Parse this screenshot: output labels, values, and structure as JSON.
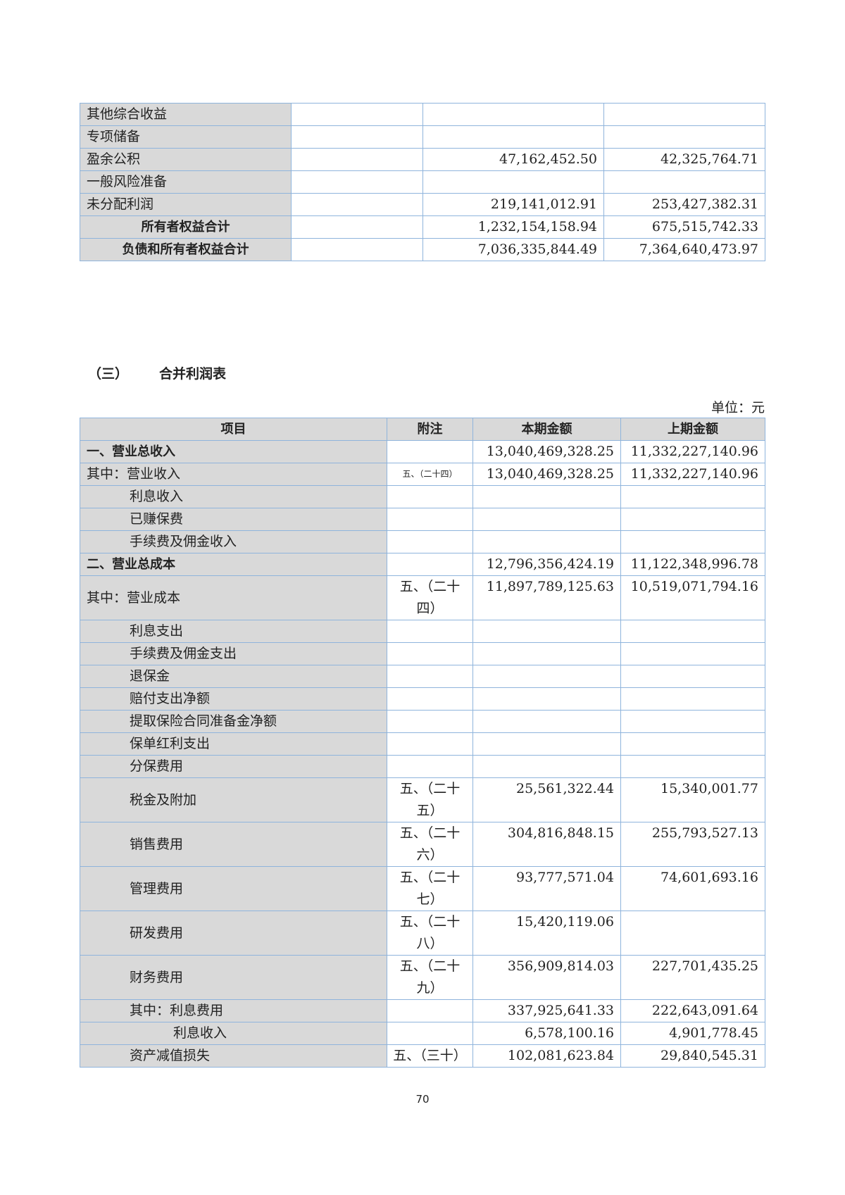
{
  "balance_tail": {
    "rows": [
      {
        "label": "其他综合收益",
        "current": "",
        "prior": ""
      },
      {
        "label": "专项储备",
        "current": "",
        "prior": ""
      },
      {
        "label": "盈余公积",
        "current": "47,162,452.50",
        "prior": "42,325,764.71"
      },
      {
        "label": "一般风险准备",
        "current": "",
        "prior": ""
      },
      {
        "label": "未分配利润",
        "current": "219,141,012.91",
        "prior": "253,427,382.31"
      },
      {
        "label": "所有者权益合计",
        "current": "1,232,154,158.94",
        "prior": "675,515,742.33",
        "bold": true
      },
      {
        "label": "负债和所有者权益合计",
        "current": "7,036,335,844.49",
        "prior": "7,364,640,473.97",
        "bold": true
      }
    ]
  },
  "section": {
    "number": "（三）",
    "title": "合并利润表",
    "unit": "单位：元"
  },
  "income": {
    "headers": [
      "项目",
      "附注",
      "本期金额",
      "上期金额"
    ],
    "rows": [
      {
        "label": "一、营业总收入",
        "level": 0,
        "bold": true,
        "note": "",
        "current": "13,040,469,328.25",
        "prior": "11,332,227,140.96"
      },
      {
        "label": "其中：营业收入",
        "level": 0,
        "note": "五、（二十四）",
        "small": true,
        "current": "13,040,469,328.25",
        "prior": "11,332,227,140.96"
      },
      {
        "label": "利息收入",
        "level": 1,
        "note": "",
        "current": "",
        "prior": ""
      },
      {
        "label": "已赚保费",
        "level": 1,
        "note": "",
        "current": "",
        "prior": ""
      },
      {
        "label": "手续费及佣金收入",
        "level": 1,
        "note": "",
        "current": "",
        "prior": ""
      },
      {
        "label": "二、营业总成本",
        "level": 0,
        "bold": true,
        "note": "",
        "current": "12,796,356,424.19",
        "prior": "11,122,348,996.78"
      },
      {
        "label": "其中：营业成本",
        "level": 0,
        "tall": true,
        "note": "五、（二十四）",
        "current": "11,897,789,125.63",
        "prior": "10,519,071,794.16"
      },
      {
        "label": "利息支出",
        "level": 1,
        "note": "",
        "current": "",
        "prior": ""
      },
      {
        "label": "手续费及佣金支出",
        "level": 1,
        "note": "",
        "current": "",
        "prior": ""
      },
      {
        "label": "退保金",
        "level": 1,
        "note": "",
        "current": "",
        "prior": ""
      },
      {
        "label": "赔付支出净额",
        "level": 1,
        "note": "",
        "current": "",
        "prior": ""
      },
      {
        "label": "提取保险合同准备金净额",
        "level": 1,
        "note": "",
        "current": "",
        "prior": ""
      },
      {
        "label": "保单红利支出",
        "level": 1,
        "note": "",
        "current": "",
        "prior": ""
      },
      {
        "label": "分保费用",
        "level": 1,
        "note": "",
        "current": "",
        "prior": ""
      },
      {
        "label": "税金及附加",
        "level": 1,
        "tall": true,
        "note": "五、（二十五）",
        "current": "25,561,322.44",
        "prior": "15,340,001.77"
      },
      {
        "label": "销售费用",
        "level": 1,
        "tall": true,
        "note": "五、（二十六）",
        "current": "304,816,848.15",
        "prior": "255,793,527.13"
      },
      {
        "label": "管理费用",
        "level": 1,
        "tall": true,
        "note": "五、（二十七）",
        "current": "93,777,571.04",
        "prior": "74,601,693.16"
      },
      {
        "label": "研发费用",
        "level": 1,
        "tall": true,
        "note": "五、（二十八）",
        "current": "15,420,119.06",
        "prior": ""
      },
      {
        "label": "财务费用",
        "level": 1,
        "tall": true,
        "note": "五、（二十九）",
        "current": "356,909,814.03",
        "prior": "227,701,435.25"
      },
      {
        "label": "其中：利息费用",
        "level": 1,
        "note": "",
        "current": "337,925,641.33",
        "prior": "222,643,091.64"
      },
      {
        "label": "利息收入",
        "level": 2,
        "note": "",
        "current": "6,578,100.16",
        "prior": "4,901,778.45"
      },
      {
        "label": "资产减值损失",
        "level": 1,
        "note": "五、（三十）",
        "current": "102,081,623.84",
        "prior": "29,840,545.31"
      }
    ]
  },
  "page_number": "70",
  "colors": {
    "border": "#8fb4dc",
    "label_fill": "#d9d9d9"
  }
}
